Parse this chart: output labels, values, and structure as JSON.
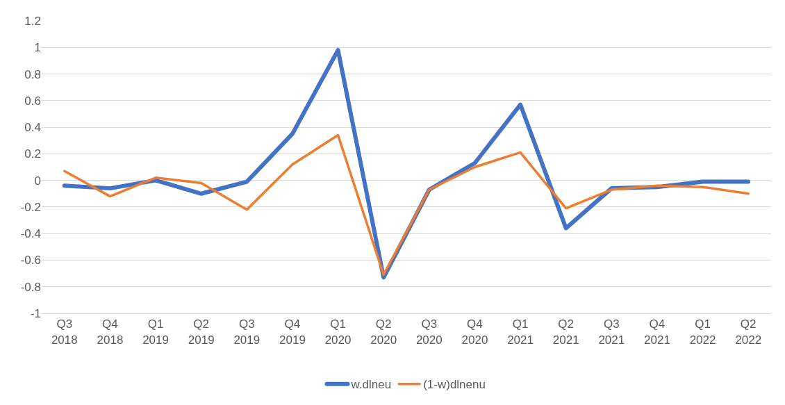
{
  "chart_data": {
    "type": "line",
    "categories": [
      "Q3\n2018",
      "Q4\n2018",
      "Q1\n2019",
      "Q2\n2019",
      "Q3\n2019",
      "Q4\n2019",
      "Q1\n2020",
      "Q2\n2020",
      "Q3\n2020",
      "Q4\n2020",
      "Q1\n2021",
      "Q2\n2021",
      "Q3\n2021",
      "Q4\n2021",
      "Q1\n2022",
      "Q2\n2022"
    ],
    "series": [
      {
        "name": "w.dlneu",
        "color": "#4472c4",
        "values": [
          -0.04,
          -0.06,
          0,
          -0.1,
          -0.01,
          0.35,
          0.98,
          -0.73,
          -0.07,
          0.13,
          0.57,
          -0.36,
          -0.06,
          -0.05,
          -0.01,
          -0.01
        ]
      },
      {
        "name": "(1-w)dlnenu",
        "color": "#ed7d31",
        "values": [
          0.07,
          -0.12,
          0.02,
          -0.02,
          -0.22,
          0.12,
          0.34,
          -0.71,
          -0.07,
          0.1,
          0.21,
          -0.21,
          -0.07,
          -0.04,
          -0.05,
          -0.1
        ]
      }
    ],
    "ylim": [
      -1,
      1.2
    ],
    "yticks": [
      -1,
      -0.8,
      -0.6,
      -0.4,
      -0.2,
      0,
      0.2,
      0.4,
      0.6,
      0.8,
      1,
      1.2
    ],
    "grid": "y",
    "legend": "bottom",
    "marker": "none",
    "line_style": "solid"
  }
}
